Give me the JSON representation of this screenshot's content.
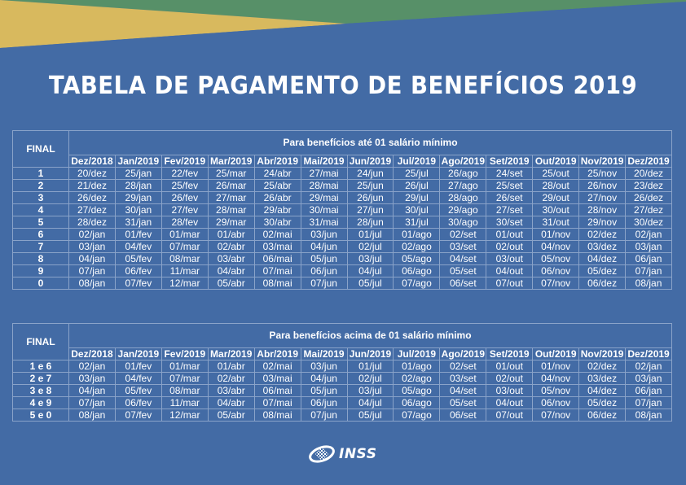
{
  "colors": {
    "background": "#436ba5",
    "yellow": "#d8b95e",
    "green": "#579068",
    "grid": "#8aa3c9",
    "text": "#ffffff"
  },
  "title": "TABELA DE PAGAMENTO DE BENEFÍCIOS 2019",
  "months": [
    "Dez/2018",
    "Jan/2019",
    "Fev/2019",
    "Mar/2019",
    "Abr/2019",
    "Mai/2019",
    "Jun/2019",
    "Jul/2019",
    "Ago/2019",
    "Set/2019",
    "Out/2019",
    "Nov/2019",
    "Dez/2019"
  ],
  "table1": {
    "final_label": "FINAL",
    "caption": "Para benefícios até 01 salário mínimo",
    "rows": [
      {
        "final": "1",
        "dates": [
          "20/dez",
          "25/jan",
          "22/fev",
          "25/mar",
          "24/abr",
          "27/mai",
          "24/jun",
          "25/jul",
          "26/ago",
          "24/set",
          "25/out",
          "25/nov",
          "20/dez"
        ]
      },
      {
        "final": "2",
        "dates": [
          "21/dez",
          "28/jan",
          "25/fev",
          "26/mar",
          "25/abr",
          "28/mai",
          "25/jun",
          "26/jul",
          "27/ago",
          "25/set",
          "28/out",
          "26/nov",
          "23/dez"
        ]
      },
      {
        "final": "3",
        "dates": [
          "26/dez",
          "29/jan",
          "26/fev",
          "27/mar",
          "26/abr",
          "29/mai",
          "26/jun",
          "29/jul",
          "28/ago",
          "26/set",
          "29/out",
          "27/nov",
          "26/dez"
        ]
      },
      {
        "final": "4",
        "dates": [
          "27/dez",
          "30/jan",
          "27/fev",
          "28/mar",
          "29/abr",
          "30/mai",
          "27/jun",
          "30/jul",
          "29/ago",
          "27/set",
          "30/out",
          "28/nov",
          "27/dez"
        ]
      },
      {
        "final": "5",
        "dates": [
          "28/dez",
          "31/jan",
          "28/fev",
          "29/mar",
          "30/abr",
          "31/mai",
          "28/jun",
          "31/jul",
          "30/ago",
          "30/set",
          "31/out",
          "29/nov",
          "30/dez"
        ]
      },
      {
        "final": "6",
        "dates": [
          "02/jan",
          "01/fev",
          "01/mar",
          "01/abr",
          "02/mai",
          "03/jun",
          "01/jul",
          "01/ago",
          "02/set",
          "01/out",
          "01/nov",
          "02/dez",
          "02/jan"
        ]
      },
      {
        "final": "7",
        "dates": [
          "03/jan",
          "04/fev",
          "07/mar",
          "02/abr",
          "03/mai",
          "04/jun",
          "02/jul",
          "02/ago",
          "03/set",
          "02/out",
          "04/nov",
          "03/dez",
          "03/jan"
        ]
      },
      {
        "final": "8",
        "dates": [
          "04/jan",
          "05/fev",
          "08/mar",
          "03/abr",
          "06/mai",
          "05/jun",
          "03/jul",
          "05/ago",
          "04/set",
          "03/out",
          "05/nov",
          "04/dez",
          "06/jan"
        ]
      },
      {
        "final": "9",
        "dates": [
          "07/jan",
          "06/fev",
          "11/mar",
          "04/abr",
          "07/mai",
          "06/jun",
          "04/jul",
          "06/ago",
          "05/set",
          "04/out",
          "06/nov",
          "05/dez",
          "07/jan"
        ]
      },
      {
        "final": "0",
        "dates": [
          "08/jan",
          "07/fev",
          "12/mar",
          "05/abr",
          "08/mai",
          "07/jun",
          "05/jul",
          "07/ago",
          "06/set",
          "07/out",
          "07/nov",
          "06/dez",
          "08/jan"
        ]
      }
    ]
  },
  "table2": {
    "final_label": "FINAL",
    "caption": "Para benefícios acima de 01 salário mínimo",
    "rows": [
      {
        "final": "1 e 6",
        "dates": [
          "02/jan",
          "01/fev",
          "01/mar",
          "01/abr",
          "02/mai",
          "03/jun",
          "01/jul",
          "01/ago",
          "02/set",
          "01/out",
          "01/nov",
          "02/dez",
          "02/jan"
        ]
      },
      {
        "final": "2 e 7",
        "dates": [
          "03/jan",
          "04/fev",
          "07/mar",
          "02/abr",
          "03/mai",
          "04/jun",
          "02/jul",
          "02/ago",
          "03/set",
          "02/out",
          "04/nov",
          "03/dez",
          "03/jan"
        ]
      },
      {
        "final": "3 e 8",
        "dates": [
          "04/jan",
          "05/fev",
          "08/mar",
          "03/abr",
          "06/mai",
          "05/jun",
          "03/jul",
          "05/ago",
          "04/set",
          "03/out",
          "05/nov",
          "04/dez",
          "06/jan"
        ]
      },
      {
        "final": "4 e 9",
        "dates": [
          "07/jan",
          "06/fev",
          "11/mar",
          "04/abr",
          "07/mai",
          "06/jun",
          "04/jul",
          "06/ago",
          "05/set",
          "04/out",
          "06/nov",
          "05/dez",
          "07/jan"
        ]
      },
      {
        "final": "5 e 0",
        "dates": [
          "08/jan",
          "07/fev",
          "12/mar",
          "05/abr",
          "08/mai",
          "07/jun",
          "05/jul",
          "07/ago",
          "06/set",
          "07/out",
          "07/nov",
          "06/dez",
          "08/jan"
        ]
      }
    ]
  },
  "footer": {
    "logo_icon": "inss-emblem-icon",
    "logo_text": "INSS"
  }
}
